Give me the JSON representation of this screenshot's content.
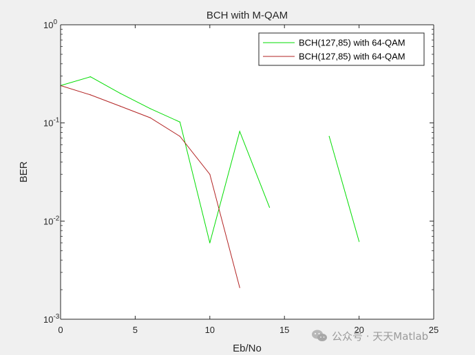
{
  "chart_data": {
    "type": "line",
    "title": "BCH with M-QAM",
    "xlabel": "Eb/No",
    "ylabel": "BER",
    "xlim": [
      0,
      25
    ],
    "ylim": [
      0.001,
      1
    ],
    "yscale": "log",
    "x_ticks": [
      "0",
      "5",
      "10",
      "15",
      "20",
      "25"
    ],
    "y_ticks": [
      {
        "base": "10",
        "exp": "0"
      },
      {
        "base": "10",
        "exp": "-1"
      },
      {
        "base": "10",
        "exp": "-2"
      },
      {
        "base": "10",
        "exp": "-3"
      }
    ],
    "grid": false,
    "legend_position": "top-right",
    "series": [
      {
        "name": "BCH(127,85) with 64-QAM",
        "color": "#00dd00",
        "x": [
          0,
          2,
          4,
          6,
          8,
          10,
          12,
          14,
          16,
          18,
          20
        ],
        "y": [
          0.24,
          0.295,
          0.2,
          0.14,
          0.102,
          0.006,
          0.082,
          0.0138,
          null,
          0.073,
          0.0062
        ]
      },
      {
        "name": "BCH(127,85) with 64-QAM",
        "color": "#b22222",
        "x": [
          0,
          2,
          4,
          6,
          8,
          10,
          12
        ],
        "y": [
          0.24,
          0.193,
          0.148,
          0.113,
          0.073,
          0.03,
          0.0021
        ]
      }
    ]
  },
  "watermark": {
    "text": "公众号 · 天天Matlab",
    "icon": "wechat-icon"
  }
}
